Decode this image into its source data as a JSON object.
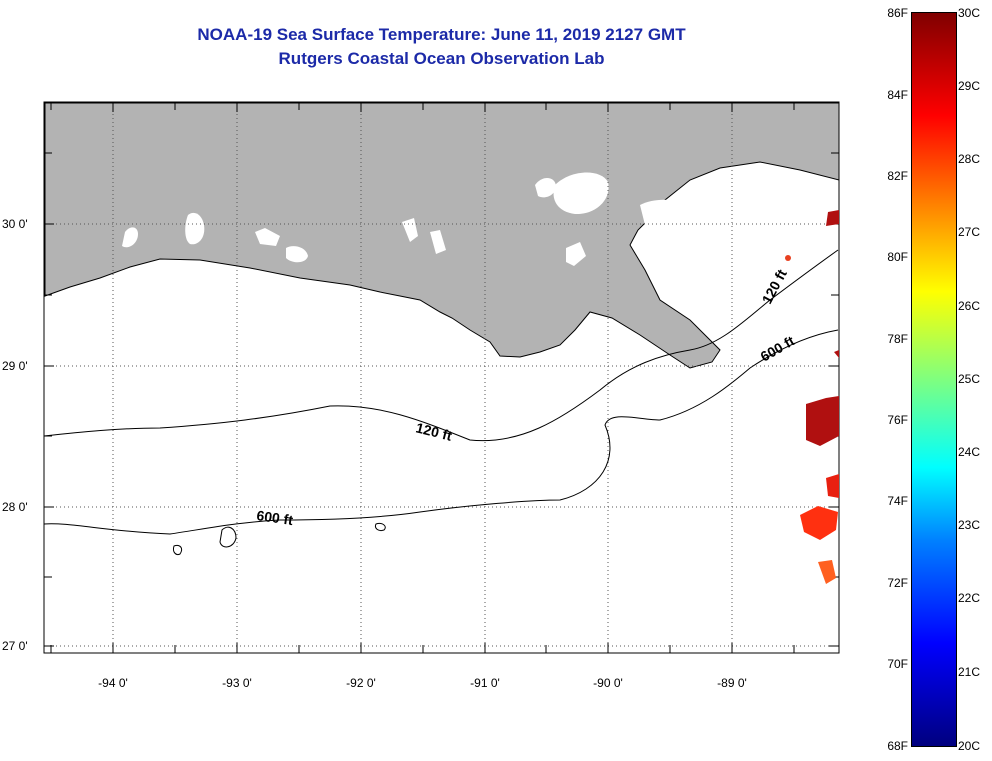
{
  "title": "NOAA-19 Sea Surface Temperature:  June 11, 2019 2127 GMT",
  "subtitle": "Rutgers Coastal Ocean Observation Lab",
  "lat_labels": [
    "30 0'",
    "29 0'",
    "28 0'",
    "27 0'"
  ],
  "lon_labels": [
    "-94 0'",
    "-93 0'",
    "-92 0'",
    "-91 0'",
    "-90 0'",
    "-89 0'"
  ],
  "contour_labels": {
    "shallow": "120 ft",
    "deep": "600 ft"
  },
  "colorbar": {
    "fahrenheit": [
      "86F",
      "84F",
      "82F",
      "80F",
      "78F",
      "76F",
      "74F",
      "72F",
      "70F",
      "68F"
    ],
    "celsius": [
      "30C",
      "29C",
      "28C",
      "27C",
      "26C",
      "25C",
      "24C",
      "23C",
      "22C",
      "21C",
      "20C"
    ]
  },
  "colors": {
    "land": "#b3b3b3",
    "title": "#1c2aa8",
    "sst_hot": "#b01010",
    "sst_warm": "#ff3010"
  }
}
